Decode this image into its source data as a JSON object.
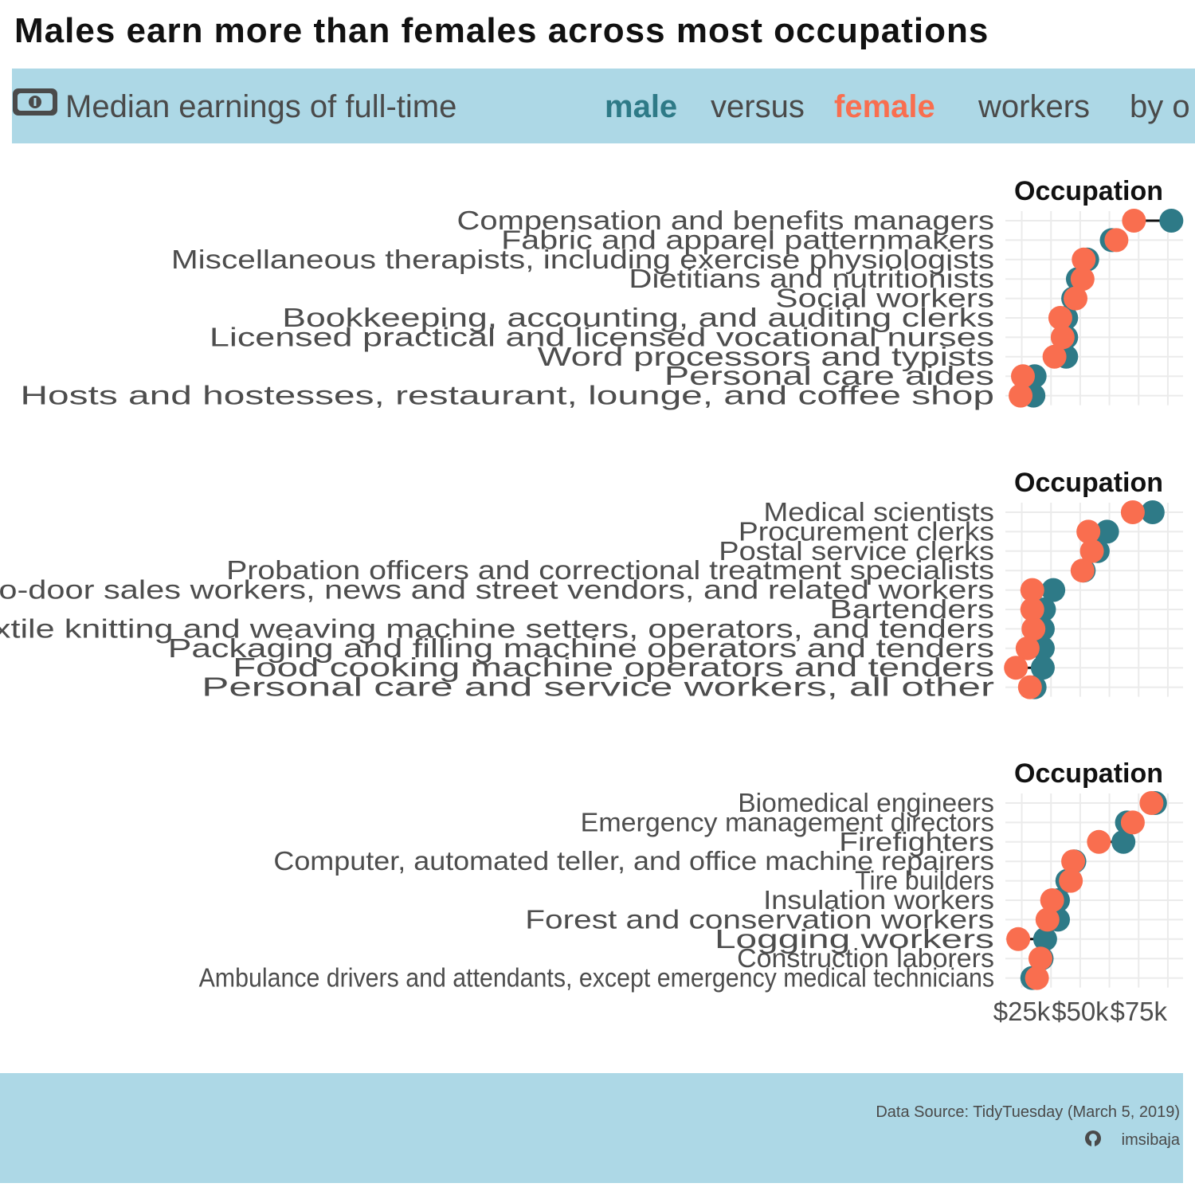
{
  "title": "Males earn more than females across most occupations",
  "subtitle": {
    "icon": "money-bill-icon",
    "prefix": "Median earnings of full-time",
    "male_word": "male",
    "middle": "versus",
    "female_word": "female",
    "suffix": "workers",
    "tail": "by o"
  },
  "colors": {
    "male": "#2e7a87",
    "female": "#f96e4f",
    "band": "#add8e6",
    "connector": "#111111"
  },
  "caption": {
    "source": "Data Source: TidyTuesday (March 5, 2019)",
    "github_icon": "github-icon",
    "handle": "imsibaja"
  },
  "chart_data": [
    {
      "type": "dot",
      "title": "Occupation",
      "x": [
        1.21,
        1.25,
        1.23,
        1.22,
        1.28,
        1.35,
        1.36,
        1.38,
        1.42,
        1.45
      ],
      "categories": [
        "Compensation and benefits managers",
        "Fabric and apparel patternmakers",
        "Miscellaneous therapists, including exercise physiologists",
        "Dietitians and nutritionists",
        "Social workers",
        "Bookkeeping, accounting, and auditing clerks",
        "Licensed practical and licensed vocational nurses",
        "Word processors and typists",
        "Personal care aides",
        "Hosts and hostesses, restaurant, lounge, and coffee shop"
      ],
      "series": [
        {
          "name": "male",
          "values": [
            89000,
            63500,
            53000,
            49000,
            47000,
            44000,
            44000,
            44000,
            30500,
            30000
          ]
        },
        {
          "name": "female",
          "values": [
            73000,
            65500,
            51500,
            51000,
            48000,
            41500,
            42500,
            39000,
            25500,
            24500
          ]
        }
      ],
      "xlim": [
        18000,
        94000
      ]
    },
    {
      "type": "dot",
      "title": "Occupation",
      "x": [
        1.12,
        1.13,
        1.15,
        1.19,
        1.26,
        1.28,
        1.31,
        1.35,
        1.44,
        1.55
      ],
      "categories": [
        "Medical scientists",
        "Procurement clerks",
        "Postal service clerks",
        "Probation officers and correctional treatment specialists",
        "Door-to-door sales workers, news and street vendors, and related workers",
        "Bartenders",
        "Textile knitting and weaving machine setters, operators, and tenders",
        "Packaging and filling machine operators and tenders",
        "Food cooking machine operators and tenders",
        "Personal care and service workers, all other"
      ],
      "series": [
        {
          "name": "male",
          "values": [
            81000,
            61500,
            57500,
            51500,
            38500,
            34500,
            34000,
            34000,
            34000,
            30500
          ]
        },
        {
          "name": "female",
          "values": [
            72500,
            53500,
            55000,
            51000,
            29500,
            29500,
            30000,
            27500,
            22500,
            28500
          ]
        }
      ],
      "xlim": [
        18000,
        94000
      ]
    },
    {
      "type": "dot",
      "title": "Occupation",
      "x": [
        1.02,
        1.03,
        1.18,
        1.09,
        0.97,
        1.09,
        1.23,
        1.45,
        1.03,
        0.92
      ],
      "categories": [
        "Biomedical engineers",
        "Emergency management directors",
        "Firefighters",
        "Computer, automated teller, and office machine repairers",
        "Tire builders",
        "Insulation workers",
        "Forest and conservation workers",
        "Logging workers",
        "Construction laborers",
        "Ambulance drivers and attendants, except emergency medical technicians"
      ],
      "series": [
        {
          "name": "male",
          "values": [
            82000,
            70000,
            68500,
            47500,
            44500,
            40500,
            40500,
            35000,
            33500,
            29500
          ]
        },
        {
          "name": "female",
          "values": [
            80500,
            72500,
            58000,
            47000,
            46000,
            38000,
            36000,
            23500,
            33000,
            31500
          ]
        }
      ],
      "xlim": [
        18000,
        94000
      ]
    }
  ],
  "x_axis": {
    "ticks": [
      25000,
      50000,
      75000
    ],
    "tick_labels": [
      "$25k",
      "$50k",
      "$75k"
    ]
  }
}
